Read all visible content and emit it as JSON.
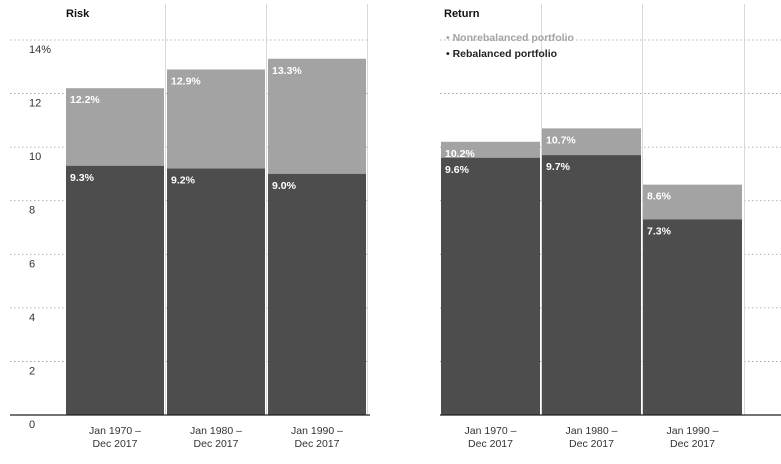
{
  "colors": {
    "rebalanced": "#4d4d4d",
    "nonrebalanced": "#a3a3a3",
    "legend_nonrebalanced_text": "#a3a3a3",
    "legend_rebalanced_text": "#222222"
  },
  "chart_data": [
    {
      "type": "bar",
      "title": "Risk",
      "categories": [
        "Jan 1970 –\nDec 2017",
        "Jan 1980 –\nDec 2017",
        "Jan 1990 –\nDec 2017"
      ],
      "series": [
        {
          "name": "Rebalanced portfolio",
          "values": [
            9.3,
            9.2,
            9.0
          ],
          "labels": [
            "9.3%",
            "9.2%",
            "9.0%"
          ]
        },
        {
          "name": "Nonrebalanced portfolio",
          "values": [
            12.2,
            12.9,
            13.3
          ],
          "labels": [
            "12.2%",
            "12.9%",
            "13.3%"
          ]
        }
      ],
      "ylim": [
        0,
        14
      ],
      "yticks": [
        0,
        2,
        4,
        6,
        8,
        10,
        12,
        14
      ],
      "ytick_labels": [
        "0",
        "2",
        "4",
        "6",
        "8",
        "10",
        "12",
        "14%"
      ],
      "grid": true,
      "legend": "none"
    },
    {
      "type": "bar",
      "title": "Return",
      "categories": [
        "Jan 1970 –\nDec 2017",
        "Jan 1980 –\nDec 2017",
        "Jan 1990 –\nDec 2017"
      ],
      "series": [
        {
          "name": "Rebalanced portfolio",
          "values": [
            9.6,
            9.7,
            7.3
          ],
          "labels": [
            "9.6%",
            "9.7%",
            "7.3%"
          ]
        },
        {
          "name": "Nonrebalanced portfolio",
          "values": [
            10.2,
            10.7,
            8.6
          ],
          "labels": [
            "10.2%",
            "10.7%",
            "8.6%"
          ]
        }
      ],
      "ylim": [
        0,
        14
      ],
      "grid": true,
      "legend": "top-left",
      "legend_entries": [
        "• Nonrebalanced portfolio",
        "• Rebalanced portfolio"
      ]
    }
  ]
}
